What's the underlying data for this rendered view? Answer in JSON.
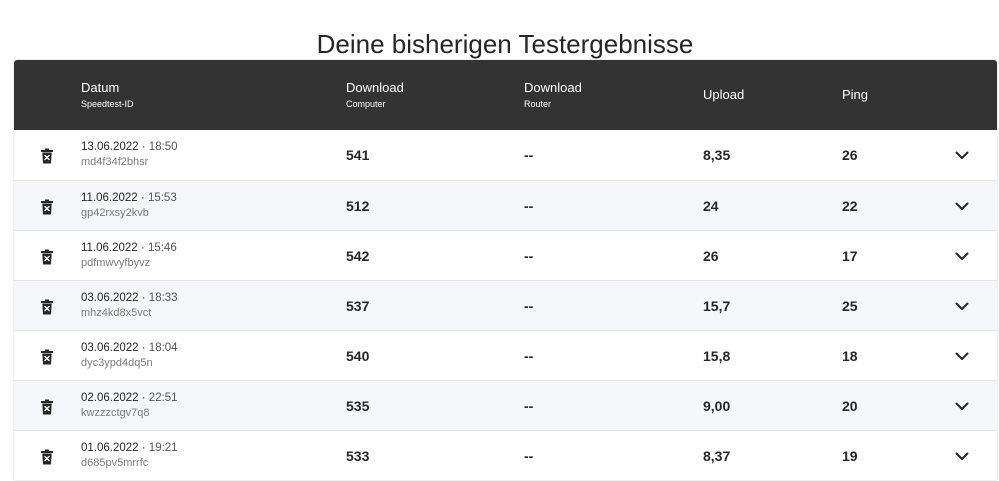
{
  "page": {
    "title": "Deine bisherigen Testergebnisse"
  },
  "table": {
    "headers": {
      "date_main": "Datum",
      "date_sub": "Speedtest-ID",
      "dl_computer_main": "Download",
      "dl_computer_sub": "Computer",
      "dl_router_main": "Download",
      "dl_router_sub": "Router",
      "upload": "Upload",
      "ping": "Ping"
    },
    "rows": [
      {
        "date": "13.06.2022",
        "sep": " · ",
        "time": "18:50",
        "id": "md4f34f2bhsr",
        "dl_computer": "541",
        "dl_router": "--",
        "upload": "8,35",
        "ping": "26"
      },
      {
        "date": "11.06.2022",
        "sep": " · ",
        "time": "15:53",
        "id": "gp42rxsy2kvb",
        "dl_computer": "512",
        "dl_router": "--",
        "upload": "24",
        "ping": "22"
      },
      {
        "date": "11.06.2022",
        "sep": " · ",
        "time": "15:46",
        "id": "pdfmwvyfbyvz",
        "dl_computer": "542",
        "dl_router": "--",
        "upload": "26",
        "ping": "17"
      },
      {
        "date": "03.06.2022",
        "sep": " · ",
        "time": "18:33",
        "id": "mhz4kd8x5vct",
        "dl_computer": "537",
        "dl_router": "--",
        "upload": "15,7",
        "ping": "25"
      },
      {
        "date": "03.06.2022",
        "sep": " · ",
        "time": "18:04",
        "id": "dyc3ypd4dq5n",
        "dl_computer": "540",
        "dl_router": "--",
        "upload": "15,8",
        "ping": "18"
      },
      {
        "date": "02.06.2022",
        "sep": " · ",
        "time": "22:51",
        "id": "kwzzzctgv7q8",
        "dl_computer": "535",
        "dl_router": "--",
        "upload": "9,00",
        "ping": "20"
      },
      {
        "date": "01.06.2022",
        "sep": " · ",
        "time": "19:21",
        "id": "d685pv5mrrfc",
        "dl_computer": "533",
        "dl_router": "--",
        "upload": "8,37",
        "ping": "19"
      }
    ]
  },
  "icons": {
    "delete": "trash-icon",
    "expand": "chevron-down-icon"
  },
  "colors": {
    "header_bg": "#333333",
    "row_alt_bg": "#f4f6f9",
    "text": "#262626"
  }
}
